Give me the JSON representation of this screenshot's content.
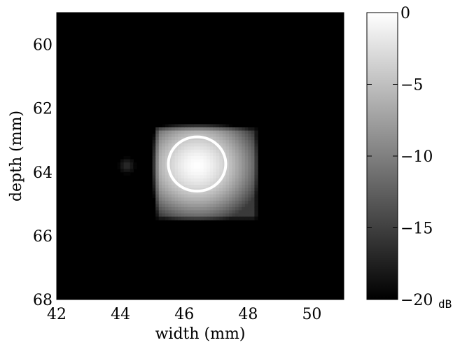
{
  "chart_data": {
    "type": "heatmap",
    "title": "",
    "xlabel": "width (mm)",
    "ylabel": "depth (mm)",
    "xlim": [
      42,
      51
    ],
    "ylim": [
      59,
      68
    ],
    "y_reversed": true,
    "xticks": [
      42,
      44,
      46,
      48,
      50
    ],
    "yticks": [
      60,
      62,
      64,
      66,
      68
    ],
    "colormap": "gray",
    "colorbar": {
      "range": [
        -20,
        0
      ],
      "ticks": [
        0,
        -5,
        -10,
        -15,
        -20
      ],
      "tick_labels": [
        "0",
        "−5",
        "−10",
        "−15",
        "−20"
      ],
      "unit": "dB"
    },
    "features": [
      {
        "kind": "bright-region",
        "center": [
          46.4,
          63.8
        ],
        "x_extent": [
          45.2,
          48.2
        ],
        "y_extent": [
          62.7,
          65.4
        ],
        "peak_db": 0
      },
      {
        "kind": "faint-spot",
        "center": [
          44.2,
          63.8
        ],
        "level_db": -16
      },
      {
        "kind": "contour",
        "color": "#ffffff",
        "center": [
          46.4,
          63.75
        ],
        "radius_x": 0.9,
        "radius_y": 0.85
      }
    ]
  }
}
